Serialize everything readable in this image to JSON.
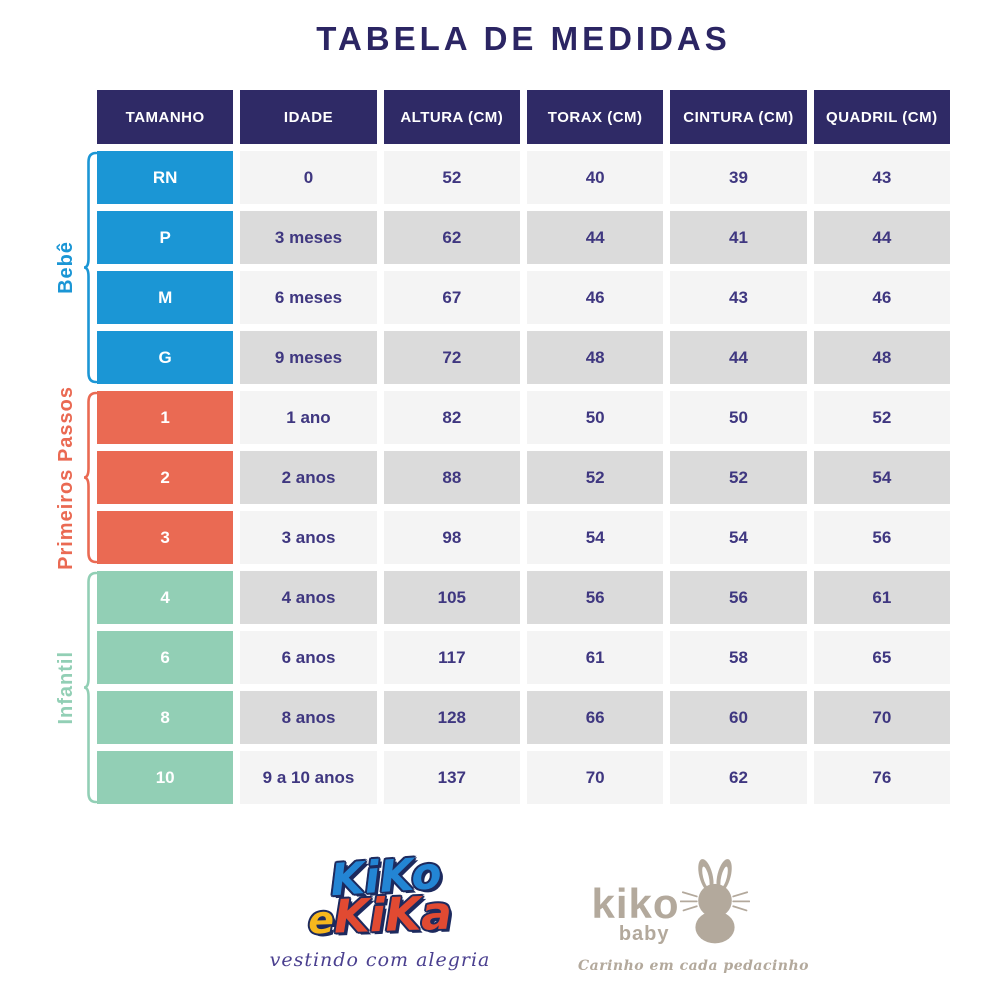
{
  "title": "TABELA DE MEDIDAS",
  "table": {
    "headers": [
      "TAMANHO",
      "IDADE",
      "ALTURA (CM)",
      "TORAX (CM)",
      "CINTURA (CM)",
      "QUADRIL (CM)"
    ],
    "groups": [
      {
        "label": "Bebê",
        "color": "#1b96d5",
        "rows": [
          {
            "size": "RN",
            "idade": "0",
            "altura": "52",
            "torax": "40",
            "cintura": "39",
            "quadril": "43"
          },
          {
            "size": "P",
            "idade": "3 meses",
            "altura": "62",
            "torax": "44",
            "cintura": "41",
            "quadril": "44"
          },
          {
            "size": "M",
            "idade": "6 meses",
            "altura": "67",
            "torax": "46",
            "cintura": "43",
            "quadril": "46"
          },
          {
            "size": "G",
            "idade": "9 meses",
            "altura": "72",
            "torax": "48",
            "cintura": "44",
            "quadril": "48"
          }
        ]
      },
      {
        "label": "Primeiros Passos",
        "color": "#ea6a53",
        "rows": [
          {
            "size": "1",
            "idade": "1 ano",
            "altura": "82",
            "torax": "50",
            "cintura": "50",
            "quadril": "52"
          },
          {
            "size": "2",
            "idade": "2 anos",
            "altura": "88",
            "torax": "52",
            "cintura": "52",
            "quadril": "54"
          },
          {
            "size": "3",
            "idade": "3 anos",
            "altura": "98",
            "torax": "54",
            "cintura": "54",
            "quadril": "56"
          }
        ]
      },
      {
        "label": "Infantil",
        "color": "#92cfb5",
        "rows": [
          {
            "size": "4",
            "idade": "4 anos",
            "altura": "105",
            "torax": "56",
            "cintura": "56",
            "quadril": "61"
          },
          {
            "size": "6",
            "idade": "6 anos",
            "altura": "117",
            "torax": "61",
            "cintura": "58",
            "quadril": "65"
          },
          {
            "size": "8",
            "idade": "8 anos",
            "altura": "128",
            "torax": "66",
            "cintura": "60",
            "quadril": "70"
          },
          {
            "size": "10",
            "idade": "9 a 10 anos",
            "altura": "137",
            "torax": "70",
            "cintura": "62",
            "quadril": "76"
          }
        ]
      }
    ]
  },
  "chart_data": {
    "type": "table",
    "title": "TABELA DE MEDIDAS",
    "columns": [
      "TAMANHO",
      "IDADE",
      "ALTURA (CM)",
      "TORAX (CM)",
      "CINTURA (CM)",
      "QUADRIL (CM)"
    ],
    "row_groups": [
      {
        "group": "Bebê",
        "rows": [
          [
            "RN",
            "0",
            52,
            40,
            39,
            43
          ],
          [
            "P",
            "3 meses",
            62,
            44,
            41,
            44
          ],
          [
            "M",
            "6 meses",
            67,
            46,
            43,
            46
          ],
          [
            "G",
            "9 meses",
            72,
            48,
            44,
            48
          ]
        ]
      },
      {
        "group": "Primeiros Passos",
        "rows": [
          [
            "1",
            "1 ano",
            82,
            50,
            50,
            52
          ],
          [
            "2",
            "2 anos",
            88,
            52,
            52,
            54
          ],
          [
            "3",
            "3 anos",
            98,
            54,
            54,
            56
          ]
        ]
      },
      {
        "group": "Infantil",
        "rows": [
          [
            "4",
            "4 anos",
            105,
            56,
            56,
            61
          ],
          [
            "6",
            "6 anos",
            117,
            61,
            58,
            65
          ],
          [
            "8",
            "8 anos",
            128,
            66,
            60,
            70
          ],
          [
            "10",
            "9 a 10 anos",
            137,
            70,
            62,
            76
          ]
        ]
      }
    ]
  },
  "footer": {
    "logo_kiko_e_kika": {
      "word1": "KiKo",
      "conj": "e",
      "word2": "KiKa",
      "tagline": "vestindo com alegria"
    },
    "logo_kiko_baby": {
      "name": "kiko",
      "sub": "baby",
      "tagline": "Carinho em cada pedacinho"
    }
  },
  "colors": {
    "title": "#2b2563",
    "header_bg": "#2f2a66",
    "cell_text": "#3f3780",
    "row_light": "#f4f4f4",
    "row_shade": "#dbdbdb",
    "bebe": "#1b96d5",
    "primeiros_passos": "#ea6a53",
    "infantil": "#92cfb5",
    "taupe": "#b3a99c"
  }
}
